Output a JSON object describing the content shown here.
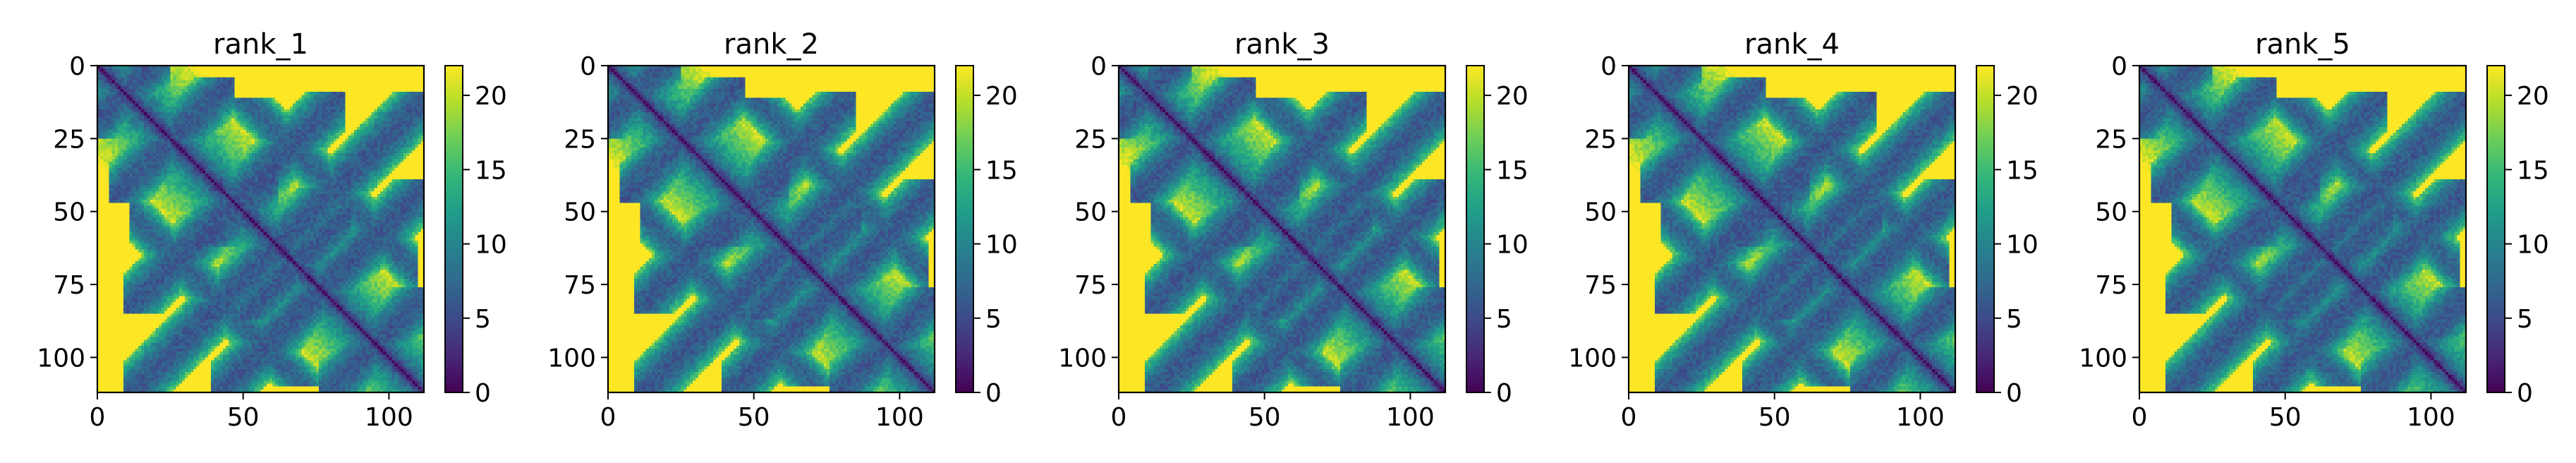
{
  "figure": {
    "layout": "1 row x 5 panels, each a heatmap with its own vertical colorbar on the right",
    "colormap": "viridis",
    "colormap_stops": [
      "#440154",
      "#482878",
      "#3e4989",
      "#31688e",
      "#26828e",
      "#1f9e89",
      "#35b779",
      "#6ece58",
      "#b5de2b",
      "#fde725"
    ],
    "background": "#ffffff"
  },
  "chart_data": [
    {
      "type": "heatmap",
      "title": "rank_1",
      "matrix_size": 112,
      "xlim": [
        0,
        112
      ],
      "ylim": [
        112,
        0
      ],
      "x_ticks": [
        0,
        50,
        100
      ],
      "y_ticks": [
        0,
        25,
        50,
        75,
        100
      ],
      "colorbar_range": [
        0,
        22
      ],
      "colorbar_ticks": [
        0,
        5,
        10,
        15,
        20
      ],
      "structure": "symmetric distance-like map: dark diagonal (~0), blue/green contact bands forming interlocking diamond/X patterns, saturated yellow (~22) elsewhere",
      "bands": [
        {
          "a": 0,
          "b": 18
        },
        {
          "a": 10,
          "b": 40
        },
        {
          "a": 15,
          "b": 78
        },
        {
          "a": 15,
          "b": 108
        },
        {
          "a": 42,
          "b": 55
        },
        {
          "a": 45,
          "b": 108
        },
        {
          "a": 55,
          "b": 80
        },
        {
          "a": 82,
          "b": 108
        }
      ]
    },
    {
      "type": "heatmap",
      "title": "rank_2",
      "matrix_size": 112,
      "xlim": [
        0,
        112
      ],
      "ylim": [
        112,
        0
      ],
      "x_ticks": [
        0,
        50,
        100
      ],
      "y_ticks": [
        0,
        25,
        50,
        75,
        100
      ],
      "colorbar_range": [
        0,
        22
      ],
      "colorbar_ticks": [
        0,
        5,
        10,
        15,
        20
      ],
      "structure": "symmetric distance-like map similar to rank_1",
      "bands": [
        {
          "a": 0,
          "b": 18
        },
        {
          "a": 10,
          "b": 40
        },
        {
          "a": 15,
          "b": 78
        },
        {
          "a": 15,
          "b": 108
        },
        {
          "a": 42,
          "b": 55
        },
        {
          "a": 45,
          "b": 108
        },
        {
          "a": 55,
          "b": 80
        },
        {
          "a": 82,
          "b": 108
        }
      ]
    },
    {
      "type": "heatmap",
      "title": "rank_3",
      "matrix_size": 112,
      "xlim": [
        0,
        112
      ],
      "ylim": [
        112,
        0
      ],
      "x_ticks": [
        0,
        50,
        100
      ],
      "y_ticks": [
        0,
        25,
        50,
        75,
        100
      ],
      "colorbar_range": [
        0,
        22
      ],
      "colorbar_ticks": [
        0,
        5,
        10,
        15,
        20
      ],
      "structure": "symmetric distance-like map similar to rank_1",
      "bands": [
        {
          "a": 0,
          "b": 18
        },
        {
          "a": 10,
          "b": 40
        },
        {
          "a": 15,
          "b": 78
        },
        {
          "a": 15,
          "b": 108
        },
        {
          "a": 42,
          "b": 55
        },
        {
          "a": 45,
          "b": 108
        },
        {
          "a": 55,
          "b": 80
        },
        {
          "a": 82,
          "b": 108
        }
      ]
    },
    {
      "type": "heatmap",
      "title": "rank_4",
      "matrix_size": 112,
      "xlim": [
        0,
        112
      ],
      "ylim": [
        112,
        0
      ],
      "x_ticks": [
        0,
        50,
        100
      ],
      "y_ticks": [
        0,
        25,
        50,
        75,
        100
      ],
      "colorbar_range": [
        0,
        22
      ],
      "colorbar_ticks": [
        0,
        5,
        10,
        15,
        20
      ],
      "structure": "symmetric distance-like map similar to rank_1",
      "bands": [
        {
          "a": 0,
          "b": 18
        },
        {
          "a": 10,
          "b": 40
        },
        {
          "a": 15,
          "b": 78
        },
        {
          "a": 15,
          "b": 108
        },
        {
          "a": 42,
          "b": 55
        },
        {
          "a": 45,
          "b": 108
        },
        {
          "a": 55,
          "b": 80
        },
        {
          "a": 82,
          "b": 108
        }
      ]
    },
    {
      "type": "heatmap",
      "title": "rank_5",
      "matrix_size": 112,
      "xlim": [
        0,
        112
      ],
      "ylim": [
        112,
        0
      ],
      "x_ticks": [
        0,
        50,
        100
      ],
      "y_ticks": [
        0,
        25,
        50,
        75,
        100
      ],
      "colorbar_range": [
        0,
        22
      ],
      "colorbar_ticks": [
        0,
        5,
        10,
        15,
        20
      ],
      "structure": "symmetric distance-like map similar to rank_1",
      "bands": [
        {
          "a": 0,
          "b": 18
        },
        {
          "a": 10,
          "b": 40
        },
        {
          "a": 15,
          "b": 78
        },
        {
          "a": 15,
          "b": 108
        },
        {
          "a": 42,
          "b": 55
        },
        {
          "a": 45,
          "b": 108
        },
        {
          "a": 55,
          "b": 80
        },
        {
          "a": 82,
          "b": 108
        }
      ]
    }
  ]
}
